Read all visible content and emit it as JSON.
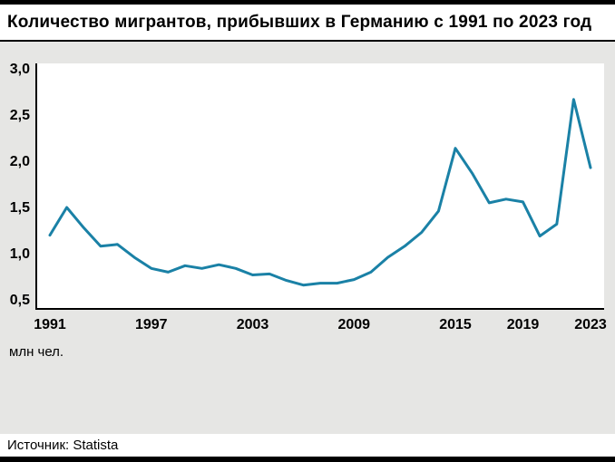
{
  "page": {
    "title": "Количество мигрантов, прибывших в Германию с 1991 по 2023 год",
    "source": "Источник: Statista"
  },
  "chart_data": {
    "type": "line",
    "title": "Количество мигрантов, прибывших в Германию с 1991 по 2023 год",
    "xlabel": "",
    "ylabel": "млн чел.",
    "x": [
      1991,
      1992,
      1993,
      1994,
      1995,
      1996,
      1997,
      1998,
      1999,
      2000,
      2001,
      2002,
      2003,
      2004,
      2005,
      2006,
      2007,
      2008,
      2009,
      2010,
      2011,
      2012,
      2013,
      2014,
      2015,
      2016,
      2017,
      2018,
      2019,
      2020,
      2021,
      2022,
      2023
    ],
    "values": [
      1.2,
      1.5,
      1.28,
      1.08,
      1.1,
      0.96,
      0.84,
      0.8,
      0.87,
      0.84,
      0.88,
      0.84,
      0.77,
      0.78,
      0.71,
      0.66,
      0.68,
      0.68,
      0.72,
      0.8,
      0.96,
      1.08,
      1.23,
      1.46,
      2.14,
      1.87,
      1.55,
      1.59,
      1.56,
      1.19,
      1.32,
      2.67,
      1.93
    ],
    "ylim": [
      0.5,
      3.0
    ],
    "yticks": [
      0.5,
      1.0,
      1.5,
      2.0,
      2.5,
      3.0
    ],
    "ytick_labels": [
      "0,5",
      "1,0",
      "1,5",
      "2,0",
      "2,5",
      "3,0"
    ],
    "xticks": [
      1991,
      1997,
      2003,
      2009,
      2015,
      2019,
      2023
    ],
    "grid": false,
    "legend_position": "none",
    "line_color": "#1a81a6",
    "axis_color": "#000000",
    "plot_background": "#ffffff",
    "page_background": "#e6e6e4",
    "source": "Источник: Statista"
  }
}
